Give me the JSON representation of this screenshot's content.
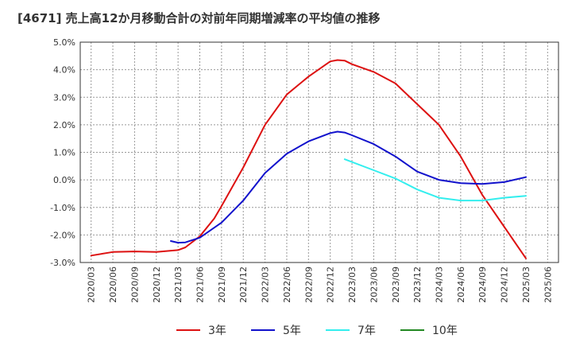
{
  "title": "[4671]  売上高12か月移動合計の対前年同期増減率の平均値の推移",
  "chart_data": {
    "type": "line",
    "title": "[4671]  売上高12か月移動合計の対前年同期増減率の平均値の推移",
    "xlabel": "",
    "ylabel": "",
    "ylim": [
      -3.0,
      5.0
    ],
    "y_ticks": [
      5.0,
      4.0,
      3.0,
      2.0,
      1.0,
      0.0,
      -1.0,
      -2.0,
      -3.0
    ],
    "y_tick_labels": [
      "5.0%",
      "4.0%",
      "3.0%",
      "2.0%",
      "1.0%",
      "0.0%",
      "-1.0%",
      "-2.0%",
      "-3.0%"
    ],
    "x_tick_labels": [
      "2020/03",
      "2020/06",
      "2020/09",
      "2020/12",
      "2021/03",
      "2021/06",
      "2021/09",
      "2021/12",
      "2022/03",
      "2022/06",
      "2022/09",
      "2022/12",
      "2023/03",
      "2023/06",
      "2023/09",
      "2023/12",
      "2024/03",
      "2024/06",
      "2024/09",
      "2024/12",
      "2025/03",
      "2025/06"
    ],
    "grid": true,
    "legend_position": "bottom",
    "series": [
      {
        "name": "3年",
        "color": "#dd1111",
        "points": [
          [
            "2020/03",
            -2.75
          ],
          [
            "2020/06",
            -2.62
          ],
          [
            "2020/09",
            -2.6
          ],
          [
            "2020/12",
            -2.62
          ],
          [
            "2021/03",
            -2.55
          ],
          [
            "2021/04",
            -2.45
          ],
          [
            "2021/06",
            -2.05
          ],
          [
            "2021/08",
            -1.4
          ],
          [
            "2021/09",
            -0.95
          ],
          [
            "2021/12",
            0.45
          ],
          [
            "2022/03",
            2.0
          ],
          [
            "2022/06",
            3.1
          ],
          [
            "2022/09",
            3.75
          ],
          [
            "2022/12",
            4.3
          ],
          [
            "2023/01",
            4.35
          ],
          [
            "2023/02",
            4.33
          ],
          [
            "2023/03",
            4.2
          ],
          [
            "2023/06",
            3.92
          ],
          [
            "2023/09",
            3.5
          ],
          [
            "2023/12",
            2.75
          ],
          [
            "2024/03",
            2.0
          ],
          [
            "2024/06",
            0.85
          ],
          [
            "2024/09",
            -0.55
          ],
          [
            "2024/12",
            -1.7
          ],
          [
            "2025/03",
            -2.85
          ]
        ]
      },
      {
        "name": "5年",
        "color": "#1111cc",
        "points": [
          [
            "2021/02",
            -2.22
          ],
          [
            "2021/03",
            -2.28
          ],
          [
            "2021/04",
            -2.27
          ],
          [
            "2021/06",
            -2.1
          ],
          [
            "2021/09",
            -1.55
          ],
          [
            "2021/12",
            -0.75
          ],
          [
            "2022/03",
            0.25
          ],
          [
            "2022/06",
            0.95
          ],
          [
            "2022/09",
            1.4
          ],
          [
            "2022/12",
            1.7
          ],
          [
            "2023/01",
            1.75
          ],
          [
            "2023/02",
            1.72
          ],
          [
            "2023/03",
            1.62
          ],
          [
            "2023/06",
            1.3
          ],
          [
            "2023/09",
            0.85
          ],
          [
            "2023/12",
            0.3
          ],
          [
            "2024/03",
            0.0
          ],
          [
            "2024/06",
            -0.12
          ],
          [
            "2024/09",
            -0.15
          ],
          [
            "2024/12",
            -0.08
          ],
          [
            "2025/03",
            0.1
          ]
        ]
      },
      {
        "name": "7年",
        "color": "#33eeee",
        "points": [
          [
            "2023/02",
            0.75
          ],
          [
            "2023/06",
            0.35
          ],
          [
            "2023/09",
            0.05
          ],
          [
            "2023/12",
            -0.35
          ],
          [
            "2024/03",
            -0.65
          ],
          [
            "2024/06",
            -0.75
          ],
          [
            "2024/09",
            -0.75
          ],
          [
            "2024/12",
            -0.65
          ],
          [
            "2025/03",
            -0.58
          ]
        ]
      },
      {
        "name": "10年",
        "color": "#228822",
        "points": []
      }
    ]
  }
}
